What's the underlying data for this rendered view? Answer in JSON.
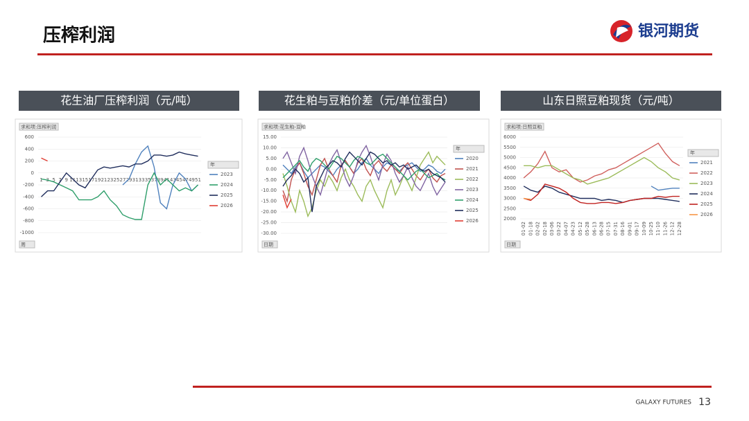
{
  "header": {
    "title": "压榨利润",
    "logo": "银河期货"
  },
  "panels": [
    {
      "title": "花生油厂压榨利润（元/吨）"
    },
    {
      "title": "花生粕与豆粕价差（元/单位蛋白）"
    },
    {
      "title": "山东日照豆粕现货（元/吨）"
    }
  ],
  "chart_data": [
    {
      "type": "line",
      "label": "求和项:压榨利润",
      "legend_title": "年",
      "filter": "周",
      "categories": [
        1,
        3,
        5,
        7,
        9,
        11,
        13,
        15,
        17,
        19,
        21,
        23,
        25,
        27,
        29,
        31,
        33,
        35,
        37,
        39,
        41,
        43,
        45,
        47,
        49,
        51
      ],
      "ylim": [
        -1000,
        600
      ],
      "yticks": [
        600,
        400,
        200,
        0,
        -200,
        -400,
        -600,
        -800,
        -1000
      ],
      "grid": true,
      "series": [
        {
          "name": "2023",
          "color": "#4f81bd",
          "values": [
            null,
            null,
            null,
            null,
            null,
            null,
            null,
            null,
            null,
            null,
            null,
            null,
            null,
            -200,
            -100,
            150,
            350,
            450,
            100,
            -500,
            -600,
            -200,
            0,
            -100,
            -300,
            -200
          ]
        },
        {
          "name": "2024",
          "color": "#2e9e6a",
          "values": [
            -100,
            -120,
            -150,
            -200,
            -250,
            -300,
            -450,
            -450,
            -450,
            -400,
            -300,
            -450,
            -550,
            -700,
            -750,
            -780,
            -780,
            -200,
            0,
            -200,
            -100,
            -200,
            -300,
            -250,
            -300,
            -200
          ]
        },
        {
          "name": "2025",
          "color": "#1f2d5c",
          "values": [
            -400,
            -300,
            -300,
            -150,
            0,
            -100,
            -200,
            -250,
            -100,
            50,
            100,
            80,
            100,
            120,
            100,
            150,
            150,
            200,
            300,
            300,
            280,
            300,
            350,
            320,
            300,
            280
          ]
        },
        {
          "name": "2026",
          "color": "#e03c31",
          "values": [
            250,
            200,
            null,
            null,
            null,
            null,
            null,
            null,
            null,
            null,
            null,
            null,
            null,
            null,
            null,
            null,
            null,
            null,
            null,
            null,
            null,
            null,
            null,
            null,
            null,
            null
          ]
        }
      ]
    },
    {
      "type": "line",
      "label": "求和项:花生粕-豆粕",
      "legend_title": "年",
      "filter": "日期",
      "ylim": [
        -30,
        15
      ],
      "yticks": [
        {
          "value": 15,
          "label": "15.00"
        },
        {
          "value": 10,
          "label": "10.00"
        },
        {
          "value": 5,
          "label": "5.00"
        },
        {
          "value": 0,
          "label": "0.00"
        },
        {
          "value": -5,
          "label": "-5.00"
        },
        {
          "value": -10,
          "label": "-10.00"
        },
        {
          "value": -15,
          "label": "-15.00"
        },
        {
          "value": -20,
          "label": "-20.00"
        },
        {
          "value": -25,
          "label": "-25.00"
        },
        {
          "value": -30,
          "label": "-30.00"
        }
      ],
      "grid": true,
      "series": [
        {
          "name": "2020",
          "color": "#4f81bd",
          "values": [
            2,
            0,
            -2,
            1,
            3,
            -1,
            -4,
            -2,
            0,
            2,
            1,
            -1,
            -3,
            0,
            2,
            4,
            1,
            -2,
            0,
            3,
            5,
            2,
            0,
            -2,
            1,
            3,
            2,
            0,
            -1,
            1,
            2,
            3,
            1,
            -1,
            0,
            2,
            1,
            -1,
            -2,
            0
          ]
        },
        {
          "name": "2021",
          "color": "#c0504d",
          "values": [
            -10,
            -15,
            -5,
            0,
            3,
            -2,
            -8,
            -12,
            -5,
            2,
            5,
            0,
            -3,
            -6,
            2,
            4,
            1,
            -2,
            3,
            5,
            0,
            -3,
            2,
            4,
            1,
            -1,
            2,
            0,
            -2,
            1,
            3,
            0,
            -3,
            -5,
            -2,
            0,
            -4,
            -6,
            -3,
            -2
          ]
        },
        {
          "name": "2022",
          "color": "#9bbb59",
          "values": [
            -2,
            -8,
            -15,
            -20,
            -10,
            -15,
            -22,
            -18,
            -10,
            -5,
            -8,
            -3,
            -6,
            -10,
            -4,
            0,
            -5,
            -8,
            -12,
            -15,
            -8,
            -5,
            -10,
            -14,
            -18,
            -10,
            -5,
            -12,
            -8,
            -3,
            -6,
            -10,
            -4,
            2,
            5,
            8,
            3,
            6,
            4,
            2
          ]
        },
        {
          "name": "2023",
          "color": "#8064a2",
          "values": [
            5,
            8,
            3,
            -2,
            6,
            10,
            4,
            -3,
            -8,
            -12,
            -5,
            2,
            6,
            9,
            3,
            -4,
            -8,
            -3,
            4,
            8,
            11,
            6,
            0,
            -5,
            2,
            7,
            4,
            -2,
            -6,
            -3,
            1,
            -4,
            -8,
            -10,
            -6,
            -2,
            -8,
            -12,
            -9,
            -6
          ]
        },
        {
          "name": "2024",
          "color": "#2e9e6a",
          "values": [
            -4,
            -2,
            0,
            2,
            4,
            1,
            -1,
            3,
            5,
            4,
            2,
            0,
            3,
            6,
            5,
            3,
            1,
            4,
            6,
            5,
            3,
            2,
            4,
            6,
            7,
            5,
            3,
            1,
            -1,
            -3,
            -5,
            -3,
            -1,
            0,
            -2,
            -4,
            -3,
            -2,
            -4,
            -5
          ]
        },
        {
          "name": "2025",
          "color": "#1f2d5c",
          "values": [
            -8,
            -5,
            -3,
            0,
            -2,
            -6,
            -4,
            -20,
            -8,
            -4,
            0,
            2,
            4,
            3,
            1,
            5,
            8,
            6,
            4,
            2,
            5,
            8,
            7,
            5,
            3,
            4,
            2,
            3,
            1,
            2,
            0,
            1,
            2,
            0,
            -1,
            0,
            -2,
            -3,
            -4,
            -6
          ]
        },
        {
          "name": "2026",
          "color": "#e03c31",
          "values": [
            -12,
            -18,
            -14,
            null,
            null,
            null,
            null,
            null,
            null,
            null,
            null,
            null,
            null,
            null,
            null,
            null,
            null,
            null,
            null,
            null,
            null,
            null,
            null,
            null,
            null,
            null,
            null,
            null,
            null,
            null,
            null,
            null,
            null,
            null,
            null,
            null,
            null,
            null,
            null,
            null
          ]
        }
      ]
    },
    {
      "type": "line",
      "label": "求和项:日照豆粕",
      "legend_title": "年",
      "filter": "日期",
      "categories": [
        "01-02",
        "01-18",
        "02-02",
        "02-18",
        "03-06",
        "03-22",
        "04-07",
        "04-23",
        "05-12",
        "05-28",
        "06-13",
        "06-28",
        "07-15",
        "07-31",
        "08-16",
        "09-01",
        "09-17",
        "10-09",
        "10-25",
        "11-10",
        "11-26",
        "12-12",
        "12-28"
      ],
      "ylim": [
        2000,
        6000
      ],
      "yticks": [
        6000,
        5500,
        5000,
        4500,
        4000,
        3500,
        3000,
        2500,
        2000
      ],
      "grid": true,
      "series": [
        {
          "name": "2021",
          "color": "#4f81bd",
          "values": [
            null,
            null,
            null,
            null,
            null,
            null,
            null,
            null,
            null,
            null,
            null,
            null,
            null,
            null,
            null,
            null,
            null,
            null,
            3600,
            3400,
            3450,
            3500,
            3500
          ]
        },
        {
          "name": "2022",
          "color": "#d0605d",
          "values": [
            4000,
            4300,
            4700,
            5300,
            4500,
            4300,
            4400,
            4000,
            3800,
            3900,
            4100,
            4200,
            4400,
            4500,
            4700,
            4900,
            5100,
            5300,
            5500,
            5700,
            5200,
            4800,
            4600
          ]
        },
        {
          "name": "2023",
          "color": "#9bbb59",
          "values": [
            4600,
            4600,
            4500,
            4600,
            4600,
            4400,
            4200,
            4000,
            3900,
            3700,
            3800,
            3900,
            4000,
            4200,
            4400,
            4600,
            4800,
            5000,
            4800,
            4500,
            4300,
            4000,
            3900
          ]
        },
        {
          "name": "2024",
          "color": "#1f2d5c",
          "values": [
            3600,
            3400,
            3300,
            3600,
            3500,
            3300,
            3200,
            3100,
            3000,
            3000,
            3000,
            2900,
            2950,
            2900,
            2800,
            2900,
            2950,
            3000,
            3000,
            3000,
            2950,
            2900,
            2850
          ]
        },
        {
          "name": "2025",
          "color": "#c0211f",
          "values": [
            3000,
            2900,
            3200,
            3700,
            3600,
            3500,
            3300,
            3000,
            2800,
            2750,
            2750,
            2800,
            2800,
            2750,
            2800,
            2900,
            2950,
            3000,
            3000,
            3100,
            3050,
            3100,
            3100
          ]
        },
        {
          "name": "2026",
          "color": "#f79646",
          "values": [
            3000,
            2950,
            null,
            null,
            null,
            null,
            null,
            null,
            null,
            null,
            null,
            null,
            null,
            null,
            null,
            null,
            null,
            null,
            null,
            null,
            null,
            null,
            null
          ]
        }
      ]
    }
  ],
  "footer": {
    "brand": "GALAXY FUTURES",
    "page": 13
  }
}
